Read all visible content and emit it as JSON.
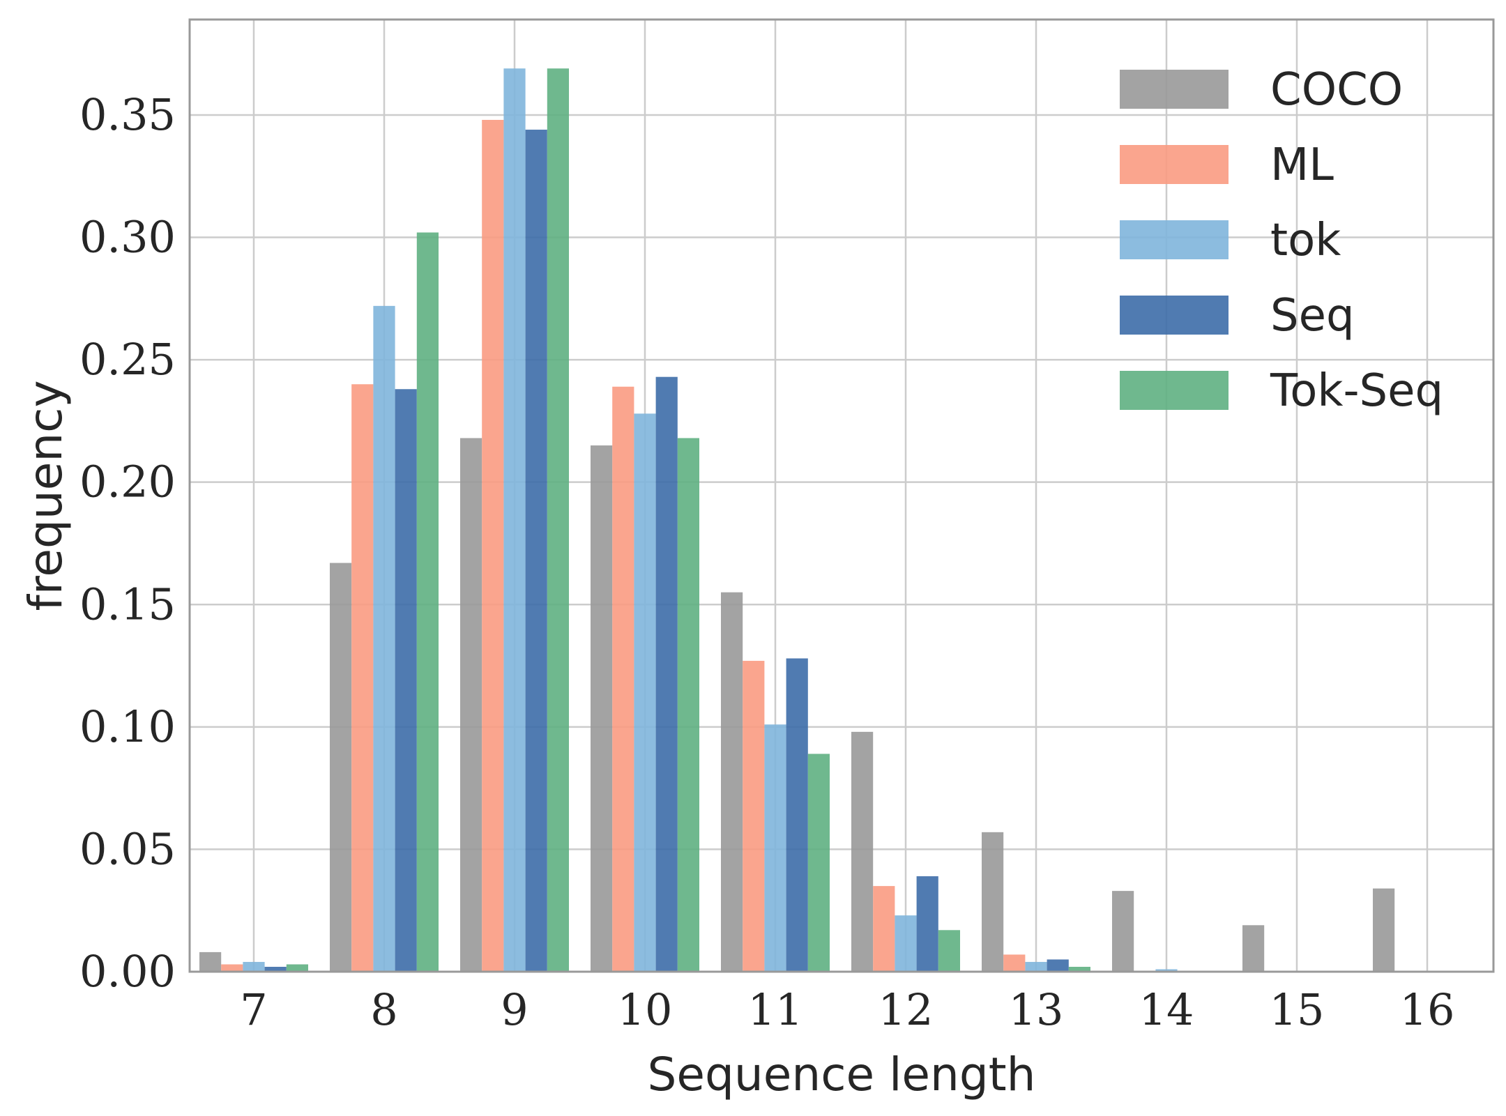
{
  "chart_data": {
    "type": "bar",
    "categories": [
      "7",
      "8",
      "9",
      "10",
      "11",
      "12",
      "13",
      "14",
      "15",
      "16"
    ],
    "series": [
      {
        "name": "COCO",
        "color": "#999999",
        "values": [
          0.008,
          0.167,
          0.218,
          0.215,
          0.155,
          0.098,
          0.057,
          0.033,
          0.019,
          0.034
        ]
      },
      {
        "name": "ML",
        "color": "#FA9B82",
        "values": [
          0.003,
          0.24,
          0.348,
          0.239,
          0.127,
          0.035,
          0.007,
          0.0,
          0.0,
          0.0
        ]
      },
      {
        "name": "tok",
        "color": "#7FB5DC",
        "values": [
          0.004,
          0.272,
          0.369,
          0.228,
          0.101,
          0.023,
          0.004,
          0.001,
          0.0,
          0.0
        ]
      },
      {
        "name": "Seq",
        "color": "#3D6DA8",
        "values": [
          0.002,
          0.238,
          0.344,
          0.243,
          0.128,
          0.039,
          0.005,
          0.0,
          0.0,
          0.0
        ]
      },
      {
        "name": "Tok-Seq",
        "color": "#5FB082",
        "values": [
          0.003,
          0.302,
          0.369,
          0.218,
          0.089,
          0.017,
          0.002,
          0.0,
          0.0,
          0.0
        ]
      }
    ],
    "yticks": [
      "0.00",
      "0.05",
      "0.10",
      "0.15",
      "0.20",
      "0.25",
      "0.30",
      "0.35"
    ],
    "xlabel": "Sequence length",
    "ylabel": "frequency",
    "ylim": [
      0,
      0.389
    ],
    "grid": true,
    "legend": "top-right"
  }
}
